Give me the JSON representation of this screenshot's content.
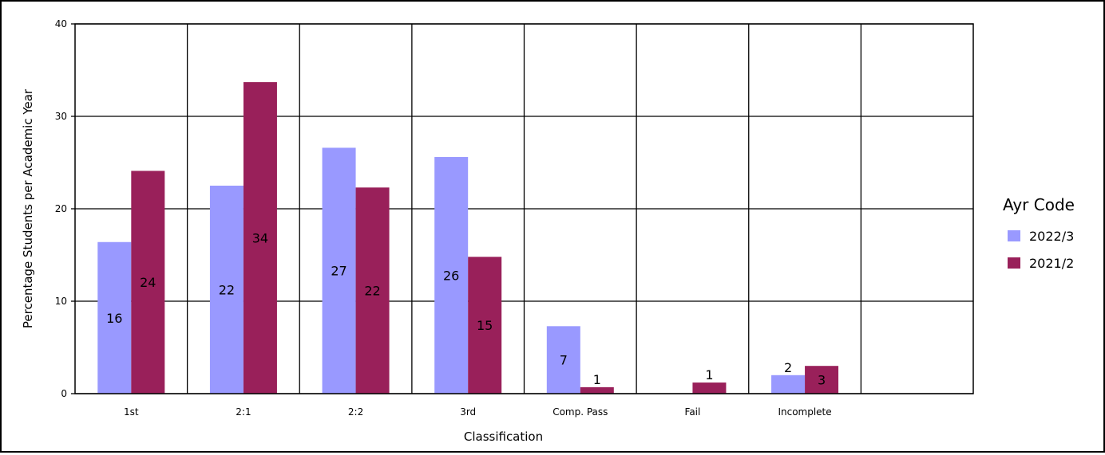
{
  "chart_data": {
    "type": "bar",
    "title": "",
    "xlabel": "Classification",
    "ylabel": "Percentage Students per Academic Year",
    "ylim": [
      0,
      40
    ],
    "yticks": [
      0,
      10,
      20,
      30,
      40
    ],
    "categories": [
      "1st",
      "2:1",
      "2:2",
      "3rd",
      "Comp. Pass",
      "Fail",
      "Incomplete",
      ""
    ],
    "series": [
      {
        "name": "2022/3",
        "color": "#9999FF",
        "values": [
          16.4,
          22.5,
          26.6,
          25.6,
          7.3,
          0,
          2.0,
          null
        ],
        "labels": [
          "16",
          "22",
          "27",
          "26",
          "7",
          "",
          "2",
          ""
        ]
      },
      {
        "name": "2021/2",
        "color": "#99205A",
        "values": [
          24.1,
          33.7,
          22.3,
          14.8,
          0.7,
          1.2,
          3.0,
          null
        ],
        "labels": [
          "24",
          "34",
          "22",
          "15",
          "1",
          "1",
          "3",
          ""
        ]
      }
    ],
    "grid": true,
    "legend": {
      "title": "Ayr Code",
      "position": "right"
    }
  }
}
